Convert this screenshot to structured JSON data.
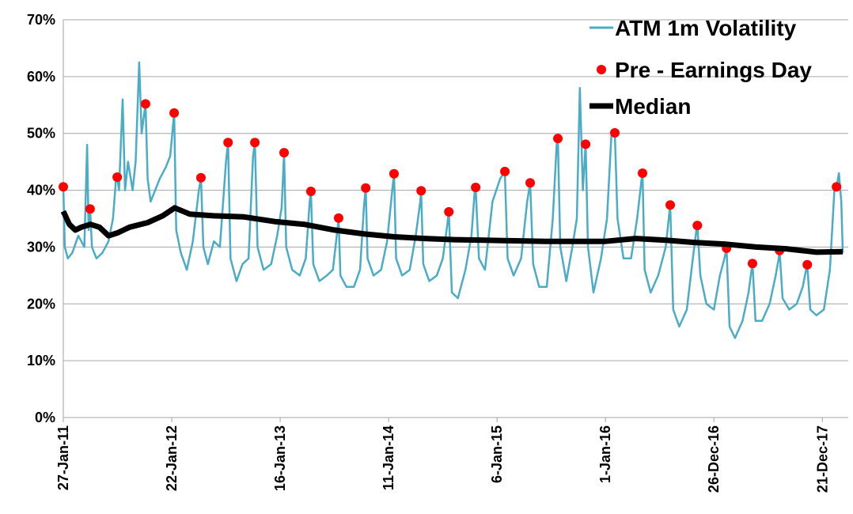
{
  "chart_data": {
    "type": "line",
    "xlim": [
      0,
      2606
    ],
    "xticks": [
      {
        "value": 0,
        "label": "27-Jan-11"
      },
      {
        "value": 360,
        "label": "22-Jan-12"
      },
      {
        "value": 720,
        "label": "16-Jan-13"
      },
      {
        "value": 1080,
        "label": "11-Jan-14"
      },
      {
        "value": 1440,
        "label": "6-Jan-15"
      },
      {
        "value": 1800,
        "label": "1-Jan-16"
      },
      {
        "value": 2160,
        "label": "26-Dec-16"
      },
      {
        "value": 2520,
        "label": "21-Dec-17"
      }
    ],
    "ylim": [
      0,
      70
    ],
    "yticks": [
      {
        "value": 0,
        "label": "0%"
      },
      {
        "value": 10,
        "label": "10%"
      },
      {
        "value": 20,
        "label": "20%"
      },
      {
        "value": 30,
        "label": "30%"
      },
      {
        "value": 40,
        "label": "40%"
      },
      {
        "value": 50,
        "label": "50%"
      },
      {
        "value": 60,
        "label": "60%"
      },
      {
        "value": 70,
        "label": "70%"
      }
    ],
    "grid": true,
    "legend": "top-right",
    "series": [
      {
        "name": "ATM 1m Volatility",
        "color": "#4bacc6",
        "kind": "line",
        "x": [
          0,
          5,
          15,
          30,
          50,
          70,
          79,
          84,
          89,
          95,
          110,
          130,
          150,
          165,
          175,
          179,
          185,
          197,
          205,
          215,
          230,
          240,
          252,
          260,
          273,
          280,
          290,
          305,
          320,
          340,
          355,
          368,
          375,
          390,
          410,
          430,
          450,
          457,
          465,
          480,
          500,
          520,
          540,
          547,
          555,
          575,
          595,
          615,
          630,
          636,
          645,
          665,
          690,
          710,
          725,
          733,
          740,
          760,
          785,
          805,
          818,
          822,
          830,
          850,
          875,
          895,
          910,
          914,
          920,
          940,
          965,
          985,
          998,
          1004,
          1010,
          1030,
          1055,
          1075,
          1092,
          1098,
          1105,
          1125,
          1150,
          1170,
          1185,
          1188,
          1195,
          1215,
          1240,
          1260,
          1275,
          1280,
          1290,
          1310,
          1335,
          1355,
          1366,
          1369,
          1380,
          1400,
          1425,
          1450,
          1466,
          1475,
          1495,
          1520,
          1540,
          1550,
          1560,
          1580,
          1605,
          1625,
          1638,
          1642,
          1650,
          1670,
          1690,
          1705,
          1715,
          1725,
          1734,
          1742,
          1760,
          1785,
          1805,
          1820,
          1831,
          1840,
          1860,
          1885,
          1905,
          1920,
          1923,
          1930,
          1950,
          1975,
          2000,
          2012,
          2015,
          2025,
          2045,
          2070,
          2090,
          2102,
          2105,
          2115,
          2135,
          2160,
          2180,
          2195,
          2202,
          2212,
          2230,
          2255,
          2275,
          2285,
          2288,
          2298,
          2320,
          2345,
          2365,
          2375,
          2378,
          2388,
          2410,
          2435,
          2455,
          2466,
          2470,
          2480,
          2500,
          2525,
          2545,
          2560,
          2567,
          2575,
          2583,
          2588
        ],
        "values": [
          40.6,
          30,
          28,
          29,
          32,
          30,
          48,
          33,
          36.7,
          30,
          28,
          29,
          31,
          35,
          42,
          42.3,
          40,
          56,
          40,
          45,
          40,
          45,
          62.5,
          50,
          55.2,
          42,
          38,
          40,
          42,
          44,
          46,
          53.6,
          33,
          29,
          26,
          31,
          40,
          42.2,
          30,
          27,
          31,
          30,
          45,
          48.4,
          28,
          24,
          27,
          28,
          46,
          48.4,
          30,
          26,
          27,
          32,
          37,
          46.6,
          30,
          26,
          25,
          28,
          38,
          39.8,
          27,
          24,
          25,
          26,
          33,
          35.1,
          25,
          23,
          23,
          26,
          37,
          40.4,
          28,
          25,
          26,
          31,
          40,
          42.9,
          28,
          25,
          26,
          32,
          38,
          39.9,
          27,
          24,
          25,
          28,
          34,
          36.2,
          22,
          21,
          26,
          32,
          40,
          40.5,
          28,
          26,
          38,
          42,
          43.3,
          28,
          25,
          28,
          38,
          41.3,
          27,
          23,
          23,
          35,
          48,
          49.1,
          30,
          24,
          30,
          35,
          58,
          40,
          48.1,
          30,
          22,
          28,
          35,
          50,
          50.1,
          35,
          28,
          28,
          35,
          42,
          43,
          26,
          22,
          25,
          30,
          36,
          37.4,
          19,
          16,
          19,
          28,
          33,
          33.8,
          25,
          20,
          19,
          25,
          28,
          29.8,
          16,
          14,
          17,
          22,
          26,
          27.1,
          17,
          17,
          20,
          25,
          28,
          29.4,
          21,
          19,
          20,
          23,
          26,
          26.9,
          19,
          18,
          19,
          26,
          40,
          40.6,
          43,
          38,
          29
        ]
      },
      {
        "name": "Pre - Earnings Day",
        "color": "#ff0000",
        "kind": "scatter",
        "x": [
          0,
          89,
          179,
          273,
          368,
          457,
          547,
          636,
          733,
          822,
          914,
          1004,
          1098,
          1188,
          1280,
          1369,
          1466,
          1550,
          1642,
          1734,
          1831,
          1923,
          2015,
          2105,
          2202,
          2288,
          2378,
          2470,
          2567
        ],
        "values": [
          40.6,
          36.7,
          42.3,
          55.2,
          53.6,
          42.2,
          48.4,
          48.4,
          46.6,
          39.8,
          35.1,
          40.4,
          42.9,
          39.9,
          36.2,
          40.5,
          43.3,
          41.3,
          49.1,
          48.1,
          50.1,
          43.0,
          37.4,
          33.8,
          29.8,
          27.1,
          29.4,
          26.9,
          40.6
        ]
      },
      {
        "name": "Median",
        "color": "#000000",
        "kind": "line",
        "x": [
          0,
          20,
          40,
          60,
          90,
          120,
          150,
          180,
          220,
          280,
          330,
          370,
          420,
          500,
          600,
          700,
          800,
          900,
          1000,
          1100,
          1200,
          1300,
          1400,
          1500,
          1600,
          1700,
          1800,
          1900,
          2000,
          2100,
          2200,
          2300,
          2400,
          2500,
          2588
        ],
        "values": [
          36.3,
          34,
          33,
          33.5,
          34,
          33.5,
          32,
          32.5,
          33.5,
          34.3,
          35.5,
          36.9,
          35.8,
          35.5,
          35.3,
          34.5,
          34,
          33,
          32.3,
          31.8,
          31.5,
          31.3,
          31.2,
          31.1,
          31.0,
          31.0,
          31.0,
          31.5,
          31.2,
          30.8,
          30.5,
          30.0,
          29.7,
          29.1,
          29.2
        ]
      }
    ]
  }
}
